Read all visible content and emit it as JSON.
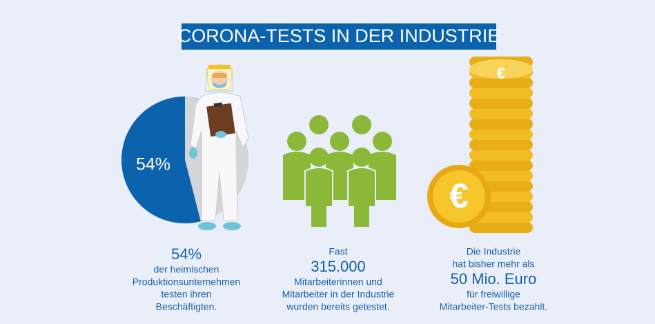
{
  "title": "CORONA-TESTS IN DER INDUSTRIE",
  "pie": {
    "value": 54,
    "label": "54%",
    "color": "#0b62ad",
    "rest_color": "#d3d5d9"
  },
  "panels": [
    {
      "before": [],
      "highlight": "54%",
      "after": [
        "der heimischen",
        "Produktionsunternehmen",
        "testen ihren",
        "Beschäftigten."
      ]
    },
    {
      "before": [
        "Fast"
      ],
      "highlight": "315.000",
      "after": [
        "Mitarbeiterinnen und",
        "Mitarbeiter in der Industrie",
        "wurden bereits getestet."
      ]
    },
    {
      "before": [
        "Die Industrie",
        "hat bisher mehr als"
      ],
      "highlight": "50 Mio. Euro",
      "after": [
        "für freiwillige",
        "Mitarbeiter-Tests bezahlt."
      ]
    }
  ]
}
